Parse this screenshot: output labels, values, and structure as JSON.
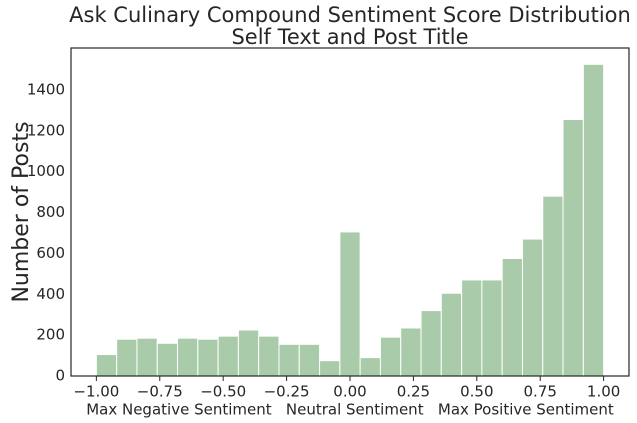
{
  "chart_data": {
    "type": "histogram",
    "title": "Ask Culinary Compound Sentiment Score Distribution",
    "subtitle": "Self Text and Post Title",
    "x_label": "Max Negative Sentiment   Neutral Sentiment   Max Positive Sentiment",
    "y_label": "Number of Posts",
    "bins": [
      -1,
      -0.92,
      -0.84,
      -0.76,
      -0.68,
      -0.6,
      -0.52,
      -0.44,
      -0.36,
      -0.28,
      -0.2,
      -0.12,
      -0.04,
      0.04,
      0.12,
      0.2,
      0.28,
      0.36,
      0.44,
      0.52,
      0.6,
      0.68,
      0.76,
      0.84,
      0.92,
      1
    ],
    "values": [
      105,
      180,
      185,
      160,
      185,
      180,
      195,
      225,
      195,
      155,
      155,
      75,
      705,
      90,
      190,
      235,
      320,
      405,
      470,
      470,
      575,
      670,
      880,
      1255,
      1525
    ],
    "color": "#a9cba9",
    "xlim": [
      -1.1,
      1.1
    ],
    "ylim": [
      0,
      1605
    ],
    "xticks": [
      {
        "value": -1,
        "label": "−1.00"
      },
      {
        "value": -0.75,
        "label": "−0.75"
      },
      {
        "value": -0.5,
        "label": "−0.50"
      },
      {
        "value": -0.25,
        "label": "−0.25"
      },
      {
        "value": 0,
        "label": "0.00"
      },
      {
        "value": 0.25,
        "label": "0.25"
      },
      {
        "value": 0.5,
        "label": "0.50"
      },
      {
        "value": 0.75,
        "label": "0.75"
      },
      {
        "value": 1,
        "label": "1.00"
      }
    ],
    "yticks": [
      0,
      200,
      400,
      600,
      800,
      1000,
      1200,
      1400
    ]
  }
}
